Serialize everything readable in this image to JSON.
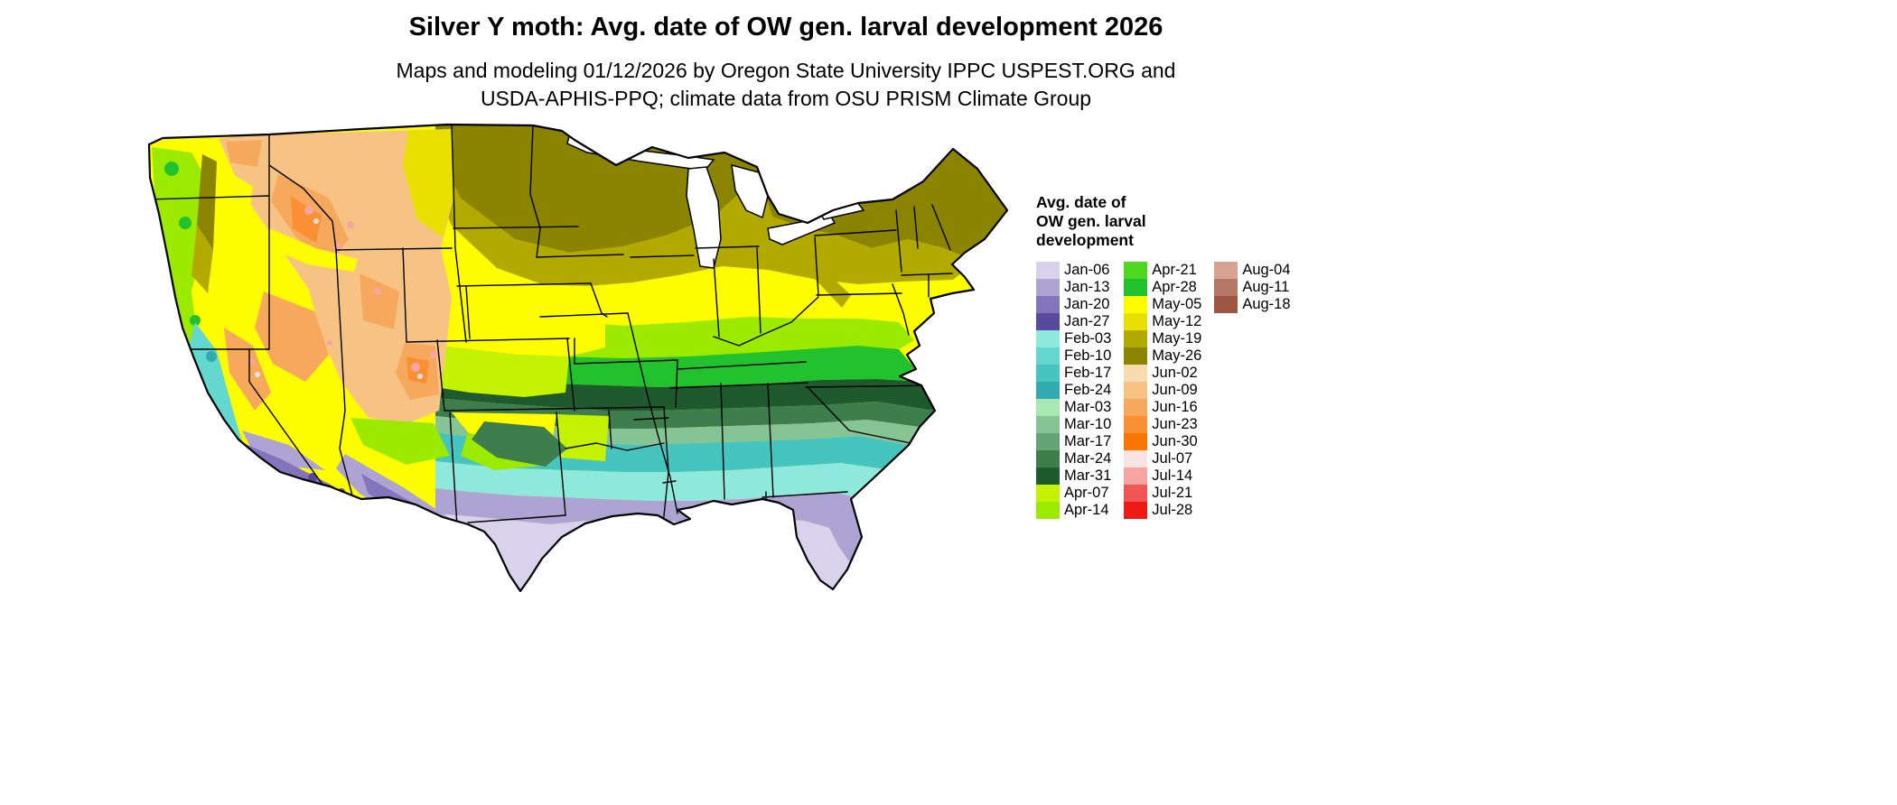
{
  "title": "Silver Y moth: Avg. date of OW gen. larval development 2026",
  "subtitle": {
    "line1": "Maps and modeling 01/12/2026 by Oregon State University IPPC USPEST.ORG and",
    "line2": "USDA-APHIS-PPQ; climate data from OSU PRISM Climate Group"
  },
  "legend": {
    "title_lines": [
      "Avg. date of",
      "OW gen. larval",
      "development"
    ],
    "columns": [
      [
        {
          "label": "Jan-06",
          "color": "#d8d2ec"
        },
        {
          "label": "Jan-13",
          "color": "#aea4d4"
        },
        {
          "label": "Jan-20",
          "color": "#8375bc"
        },
        {
          "label": "Jan-27",
          "color": "#584a9e"
        },
        {
          "label": "Feb-03",
          "color": "#8fe8dc"
        },
        {
          "label": "Feb-10",
          "color": "#63d8d0"
        },
        {
          "label": "Feb-17",
          "color": "#45c4c0"
        },
        {
          "label": "Feb-24",
          "color": "#30acb0"
        },
        {
          "label": "Mar-03",
          "color": "#a8e8b2"
        },
        {
          "label": "Mar-10",
          "color": "#86c496"
        },
        {
          "label": "Mar-17",
          "color": "#64a476"
        },
        {
          "label": "Mar-24",
          "color": "#3d7e4c"
        },
        {
          "label": "Mar-31",
          "color": "#1e5a2e"
        },
        {
          "label": "Apr-07",
          "color": "#c4f202"
        },
        {
          "label": "Apr-14",
          "color": "#9cea00"
        }
      ],
      [
        {
          "label": "Apr-21",
          "color": "#4ed821"
        },
        {
          "label": "Apr-28",
          "color": "#22c22e"
        },
        {
          "label": "May-05",
          "color": "#fdfd00"
        },
        {
          "label": "May-12",
          "color": "#e8e000"
        },
        {
          "label": "May-19",
          "color": "#b2aa00"
        },
        {
          "label": "May-26",
          "color": "#8a8400"
        },
        {
          "label": "Jun-02",
          "color": "#f6dcae"
        },
        {
          "label": "Jun-09",
          "color": "#f6c384"
        },
        {
          "label": "Jun-16",
          "color": "#f6a85c"
        },
        {
          "label": "Jun-23",
          "color": "#fb8f34"
        },
        {
          "label": "Jun-30",
          "color": "#fb7600"
        },
        {
          "label": "Jul-07",
          "color": "#f7e3e1"
        },
        {
          "label": "Jul-14",
          "color": "#f6a5a3"
        },
        {
          "label": "Jul-21",
          "color": "#f25654"
        },
        {
          "label": "Jul-28",
          "color": "#ee1a16"
        }
      ],
      [
        {
          "label": "Aug-04",
          "color": "#d6a292"
        },
        {
          "label": "Aug-11",
          "color": "#b67866"
        },
        {
          "label": "Aug-18",
          "color": "#9e5642"
        }
      ]
    ]
  }
}
